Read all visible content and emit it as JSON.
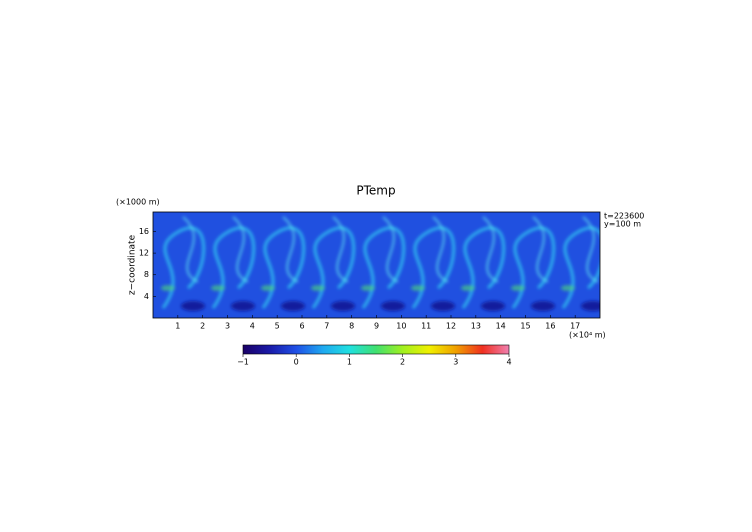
{
  "chart_data": {
    "type": "heatmap",
    "title": "PTemp",
    "y_unit": "(×1000 m)",
    "y_label": "z−coordinate",
    "x_unit": "(×10⁴ m)",
    "annotations": [
      "t=223600",
      "y=100 m"
    ],
    "xlim": [
      0,
      18
    ],
    "xticks": [
      1,
      2,
      3,
      4,
      5,
      6,
      7,
      8,
      9,
      10,
      11,
      12,
      13,
      14,
      15,
      16,
      17
    ],
    "ylim": [
      0,
      19.6
    ],
    "yticks": [
      4,
      8,
      12,
      16
    ],
    "clim": [
      -1,
      4
    ],
    "cticks": [
      {
        "value": -1,
        "label": "−1"
      },
      0,
      1,
      2,
      3,
      4
    ],
    "colormap": [
      "#1a0066",
      "#1a1aa8",
      "#1f4fe6",
      "#1fa8f0",
      "#20e0e0",
      "#40e070",
      "#a0f020",
      "#f0f000",
      "#f0a000",
      "#f03020",
      "#f080b0"
    ]
  }
}
